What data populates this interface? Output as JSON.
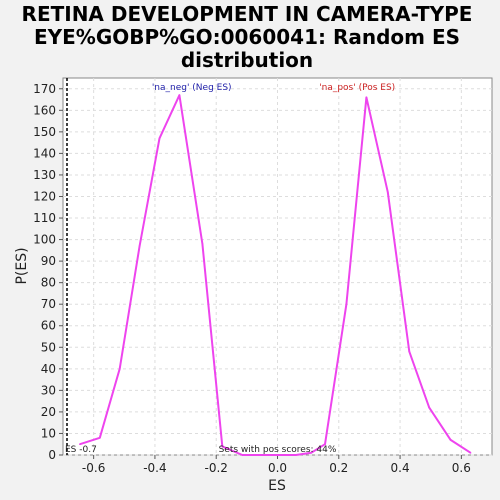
{
  "chart_data": {
    "type": "line",
    "title": [
      "RETINA DEVELOPMENT IN CAMERA-TYPE",
      "EYE%GOBP%GO:0060041: Random ES",
      "distribution"
    ],
    "xlabel": "ES",
    "ylabel": "P(ES)",
    "xlim": [
      -0.7,
      0.7
    ],
    "ylim": [
      0,
      175
    ],
    "x_ticks": [
      -0.6,
      -0.4,
      -0.2,
      0.0,
      0.2,
      0.4,
      0.6
    ],
    "x_tick_labels": [
      "-0.6",
      "-0.4",
      "-0.2",
      "0.0",
      "0.2",
      "0.4",
      "0.6"
    ],
    "y_ticks": [
      0,
      10,
      20,
      30,
      40,
      50,
      60,
      70,
      80,
      90,
      100,
      110,
      120,
      130,
      140,
      150,
      160,
      170
    ],
    "grid": true,
    "line_color": "#ee44ee",
    "series": [
      {
        "x": [
          -0.645,
          -0.58,
          -0.515,
          -0.45,
          -0.385,
          -0.32,
          -0.245,
          -0.18,
          -0.115,
          -0.05,
          0.0,
          0.06,
          0.11,
          0.155,
          0.225,
          0.29,
          0.36,
          0.43,
          0.495,
          0.565,
          0.63
        ],
        "y": [
          5,
          8,
          40,
          97,
          147,
          167,
          98,
          4,
          0,
          0,
          0,
          0,
          1,
          5,
          70,
          166,
          122,
          48,
          22,
          7,
          1
        ]
      }
    ],
    "annotations": [
      {
        "text": "'na_neg' (Neg ES)",
        "color": "#2222aa",
        "x": -0.28,
        "y": 170
      },
      {
        "text": "'na_pos' (Pos ES)",
        "color": "#cc2222",
        "x": 0.26,
        "y": 170
      },
      {
        "text": "Sets with pos scores: 44%",
        "color": "#222222",
        "x": 0.0,
        "y": 1.5
      },
      {
        "text": "ES -0.7",
        "color": "#222222",
        "x": -0.695,
        "y": 1.5
      }
    ],
    "marker_line_x": -0.7
  }
}
